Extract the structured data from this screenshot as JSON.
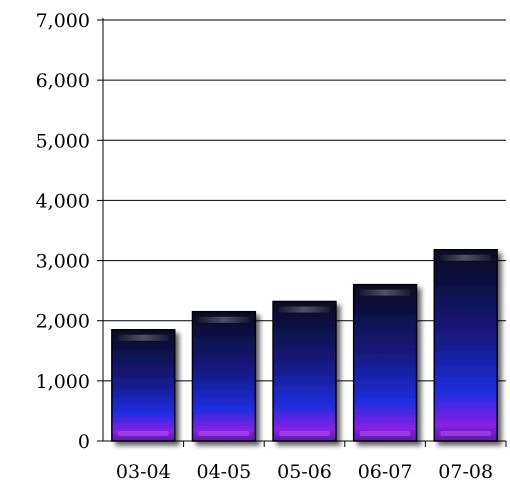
{
  "chart_data": {
    "type": "bar",
    "categories": [
      "03-04",
      "04-05",
      "05-06",
      "06-07",
      "07-08"
    ],
    "values": [
      1850,
      2150,
      2320,
      2600,
      3180
    ],
    "ylim": [
      0,
      7000
    ],
    "yticks": [
      0,
      1000,
      2000,
      3000,
      4000,
      5000,
      6000,
      7000
    ],
    "ytick_labels": [
      "0",
      "1,000",
      "2,000",
      "3,000",
      "4,000",
      "5,000",
      "6,000",
      "7,000"
    ],
    "grid": true,
    "legend": "none",
    "colors": {
      "bar_top": "#101030",
      "bar_mid": "#1a1ec8",
      "bar_bottom": "#9a22e0",
      "gridline": "#000000",
      "axis": "#000000"
    }
  }
}
